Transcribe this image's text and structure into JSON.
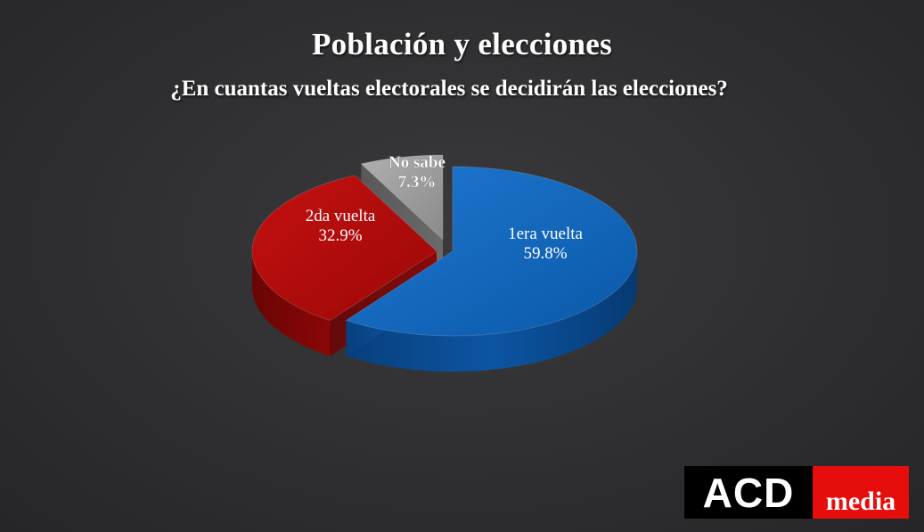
{
  "chart_data": {
    "type": "pie",
    "title": "Población y elecciones",
    "subtitle": "¿En cuantas vueltas electorales se decidirán las elecciones?",
    "slices": [
      {
        "label": "1era vuelta",
        "value": 59.8,
        "value_label": "59.8%",
        "color": "#0b5fb4"
      },
      {
        "label": "2da vuelta",
        "value": 32.9,
        "value_label": "32.9%",
        "color": "#b00b0b"
      },
      {
        "label": "No sabe",
        "value": 7.3,
        "value_label": "7.3%",
        "color": "#9a9a9a"
      }
    ],
    "style": "3d-exploded"
  },
  "logo": {
    "left_text": "ACD",
    "right_text": "media",
    "left_color": "#000000",
    "right_color": "#e60d0d"
  }
}
